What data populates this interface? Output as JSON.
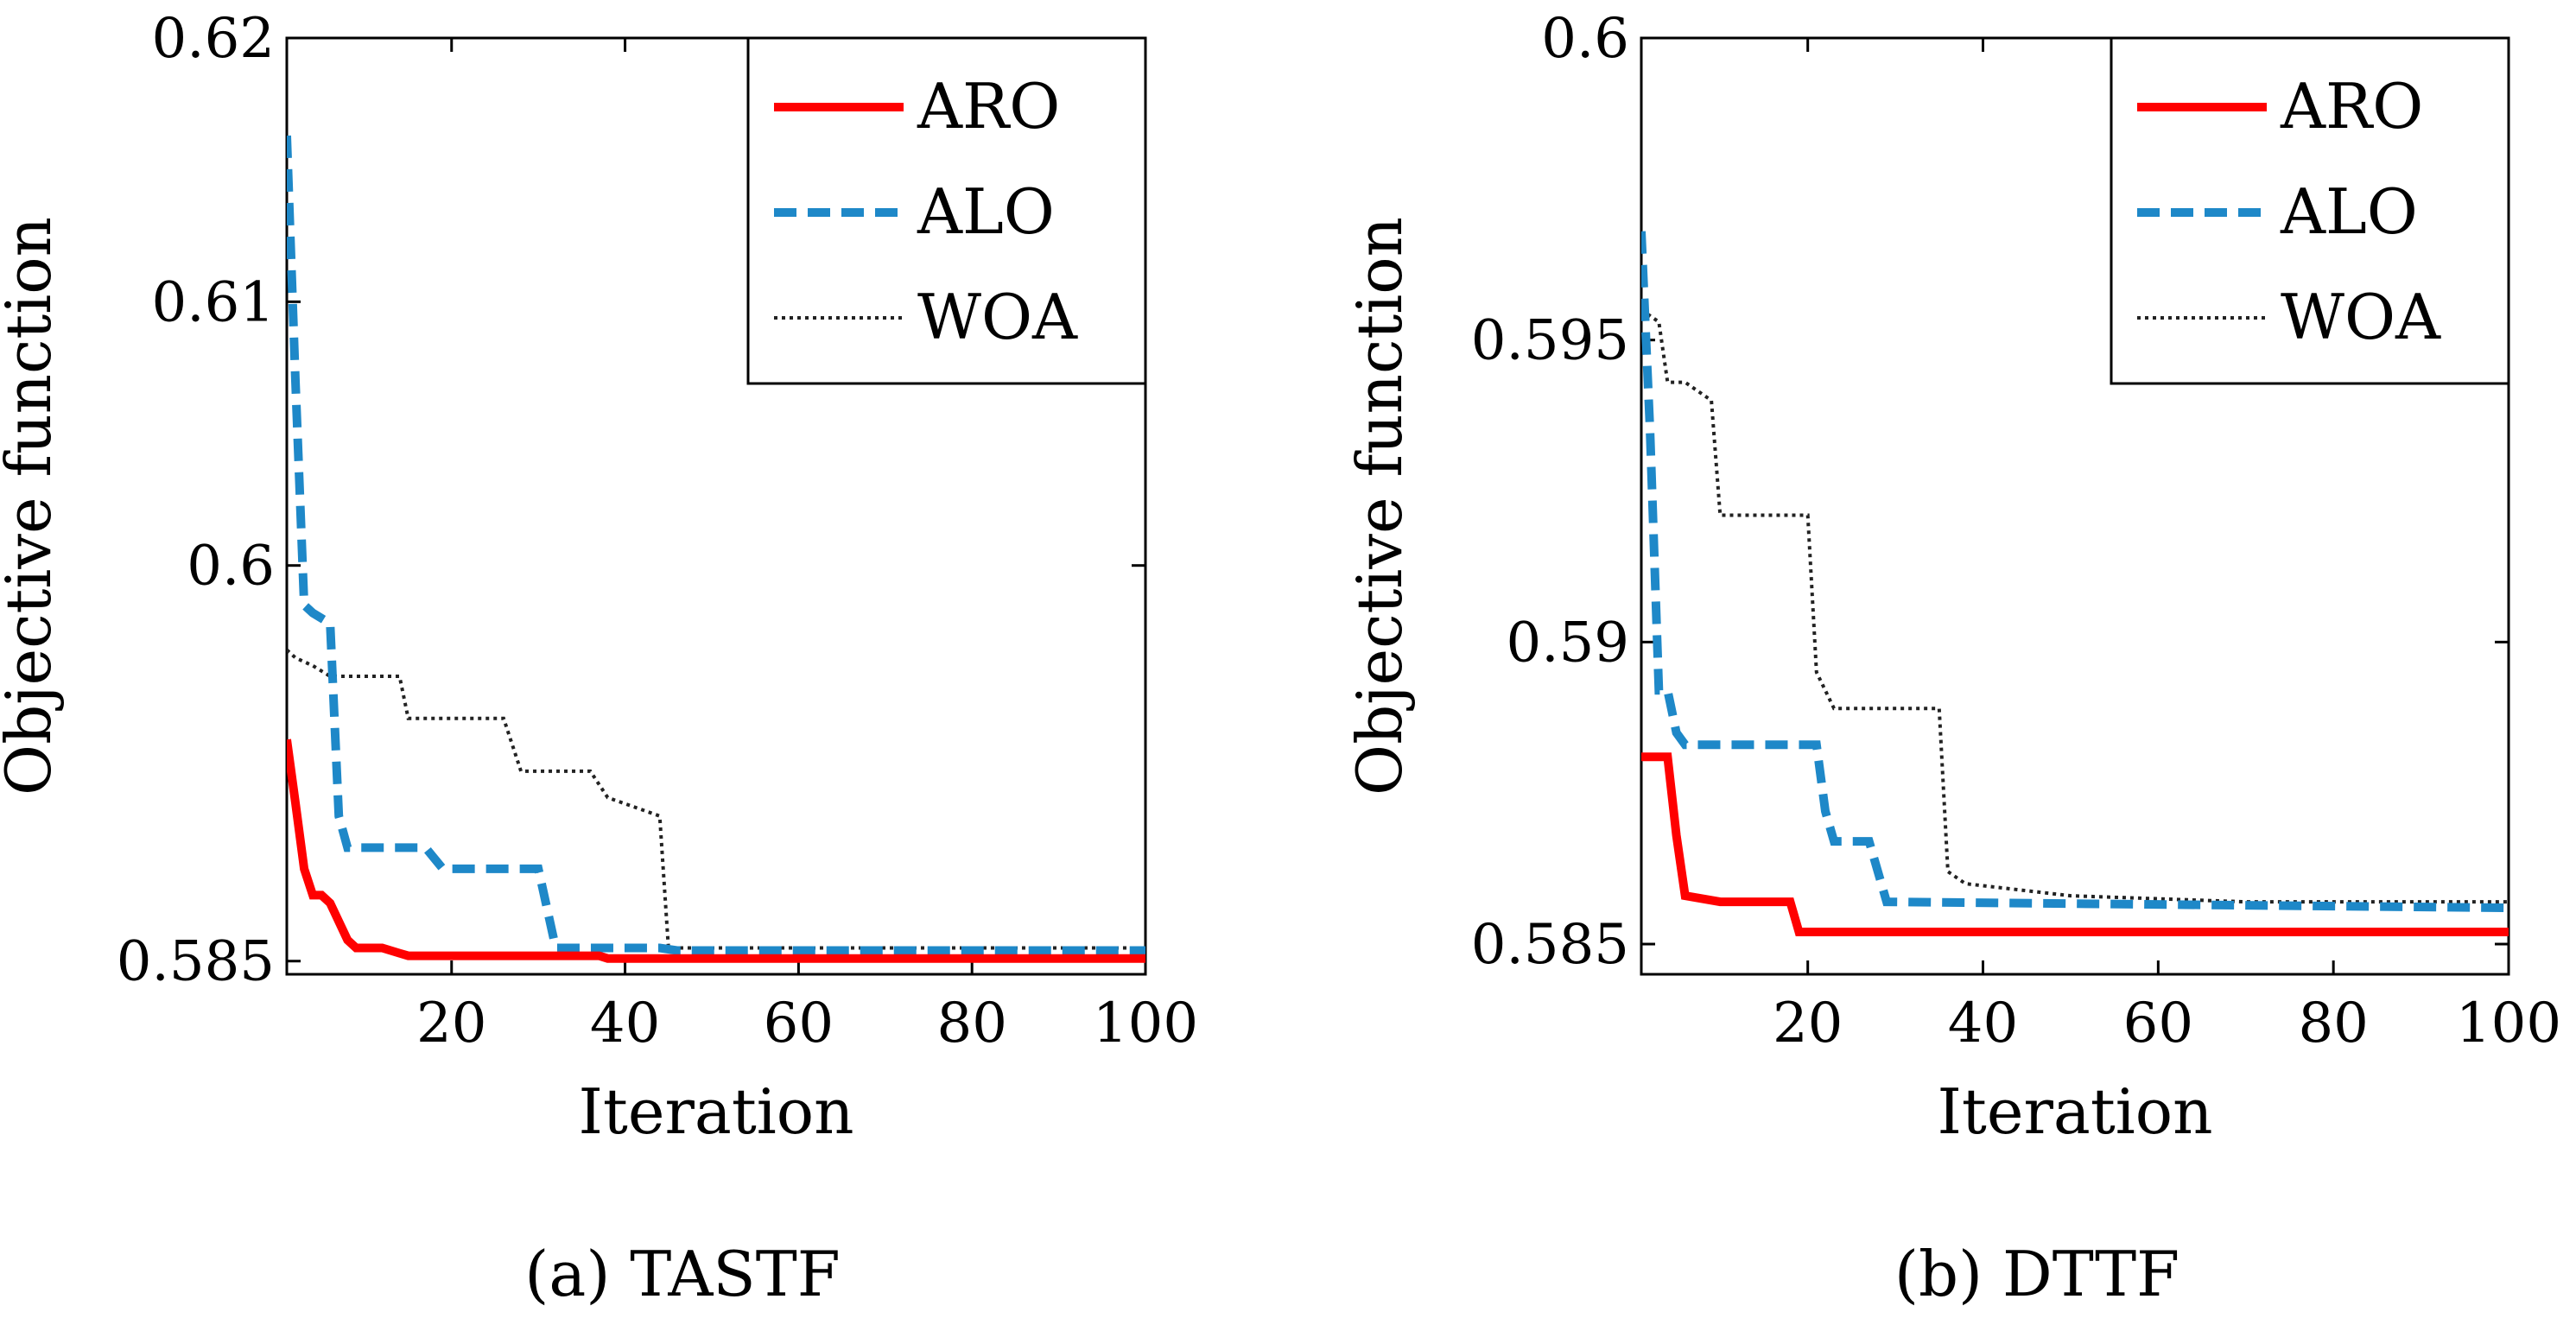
{
  "chart_data": [
    {
      "type": "line",
      "caption": "(a) TASTF",
      "xlabel": "Iteration",
      "ylabel": "Objective function",
      "xlim": [
        1,
        100
      ],
      "ylim": [
        0.5845,
        0.62
      ],
      "xticks": [
        20,
        40,
        60,
        80,
        100
      ],
      "xtick_labels": [
        "20",
        "40",
        "60",
        "80",
        "100"
      ],
      "yticks": [
        0.585,
        0.6,
        0.61,
        0.62
      ],
      "ytick_labels": [
        "0.585",
        "0.6",
        "0.61",
        "0.62"
      ],
      "grid": false,
      "legend_position": "top-right",
      "series": [
        {
          "name": "ARO",
          "color": "#ff0000",
          "style": "solid",
          "points": [
            [
              1,
              0.5934
            ],
            [
              2,
              0.591
            ],
            [
              3,
              0.5885
            ],
            [
              4,
              0.5875
            ],
            [
              5,
              0.5875
            ],
            [
              6,
              0.5872
            ],
            [
              7,
              0.5865
            ],
            [
              8,
              0.5858
            ],
            [
              9,
              0.5855
            ],
            [
              12,
              0.5855
            ],
            [
              14,
              0.5853
            ],
            [
              15,
              0.5852
            ],
            [
              37,
              0.5852
            ],
            [
              38,
              0.5851
            ],
            [
              100,
              0.5851
            ]
          ]
        },
        {
          "name": "ALO",
          "color": "#1e88c8",
          "style": "dashed",
          "points": [
            [
              1,
              0.6163
            ],
            [
              2,
              0.607
            ],
            [
              3,
              0.5985
            ],
            [
              4,
              0.5982
            ],
            [
              5,
              0.598
            ],
            [
              6,
              0.5978
            ],
            [
              7,
              0.5905
            ],
            [
              8,
              0.5893
            ],
            [
              17,
              0.5893
            ],
            [
              19,
              0.5885
            ],
            [
              30,
              0.5885
            ],
            [
              32,
              0.5855
            ],
            [
              44,
              0.5855
            ],
            [
              46,
              0.5854
            ],
            [
              100,
              0.5854
            ]
          ]
        },
        {
          "name": "WOA",
          "color": "#222222",
          "style": "dotted",
          "points": [
            [
              1,
              0.5968
            ],
            [
              2,
              0.5965
            ],
            [
              4,
              0.5962
            ],
            [
              6,
              0.5958
            ],
            [
              7,
              0.5958
            ],
            [
              14,
              0.5958
            ],
            [
              15,
              0.5942
            ],
            [
              26,
              0.5942
            ],
            [
              28,
              0.5922
            ],
            [
              36,
              0.5922
            ],
            [
              38,
              0.5912
            ],
            [
              44,
              0.5905
            ],
            [
              45,
              0.5855
            ],
            [
              100,
              0.5855
            ]
          ]
        }
      ]
    },
    {
      "type": "line",
      "caption": "(b) DTTF",
      "xlabel": "Iteration",
      "ylabel": "Objective function",
      "xlim": [
        1,
        100
      ],
      "ylim": [
        0.5845,
        0.6
      ],
      "xticks": [
        20,
        40,
        60,
        80,
        100
      ],
      "xtick_labels": [
        "20",
        "40",
        "60",
        "80",
        "100"
      ],
      "yticks": [
        0.585,
        0.59,
        0.595,
        0.6
      ],
      "ytick_labels": [
        "0.585",
        "0.59",
        "0.595",
        "0.6"
      ],
      "grid": false,
      "legend_position": "top-right",
      "series": [
        {
          "name": "ARO",
          "color": "#ff0000",
          "style": "solid",
          "points": [
            [
              1,
              0.5881
            ],
            [
              4,
              0.5881
            ],
            [
              5,
              0.5868
            ],
            [
              6,
              0.5858
            ],
            [
              10,
              0.5857
            ],
            [
              18,
              0.5857
            ],
            [
              19,
              0.5852
            ],
            [
              100,
              0.5852
            ]
          ]
        },
        {
          "name": "ALO",
          "color": "#1e88c8",
          "style": "dashed",
          "points": [
            [
              1,
              0.5968
            ],
            [
              2,
              0.5935
            ],
            [
              3,
              0.5892
            ],
            [
              4,
              0.5892
            ],
            [
              5,
              0.5885
            ],
            [
              6,
              0.5883
            ],
            [
              21,
              0.5883
            ],
            [
              22,
              0.5872
            ],
            [
              23,
              0.5867
            ],
            [
              27,
              0.5867
            ],
            [
              29,
              0.5857
            ],
            [
              100,
              0.5856
            ]
          ]
        },
        {
          "name": "WOA",
          "color": "#222222",
          "style": "dotted",
          "points": [
            [
              1,
              0.5955
            ],
            [
              3,
              0.5953
            ],
            [
              4,
              0.5943
            ],
            [
              6,
              0.5943
            ],
            [
              9,
              0.594
            ],
            [
              10,
              0.5921
            ],
            [
              20,
              0.5921
            ],
            [
              21,
              0.5895
            ],
            [
              23,
              0.5889
            ],
            [
              35,
              0.5889
            ],
            [
              36,
              0.5862
            ],
            [
              38,
              0.586
            ],
            [
              50,
              0.5858
            ],
            [
              70,
              0.5857
            ],
            [
              100,
              0.5857
            ]
          ]
        }
      ]
    }
  ]
}
